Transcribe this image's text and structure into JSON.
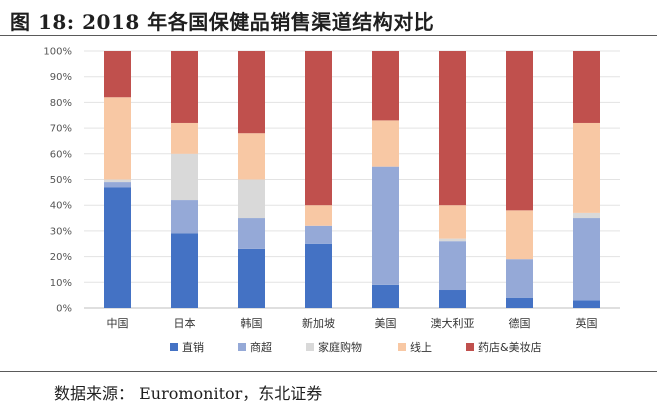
{
  "title": "图 18: 2018 年各国保健品销售渠道结构对比",
  "source": "数据来源： Euromonitor，东北证券",
  "chart_data": {
    "type": "bar",
    "stacked": true,
    "categories": [
      "中国",
      "日本",
      "韩国",
      "新加坡",
      "美国",
      "澳大利亚",
      "德国",
      "英国"
    ],
    "series": [
      {
        "name": "直销",
        "color": "#4472c4",
        "values": [
          47,
          29,
          23,
          25,
          9,
          7,
          4,
          3
        ]
      },
      {
        "name": "商超",
        "color": "#95a9d7",
        "values": [
          2,
          13,
          12,
          7,
          46,
          19,
          15,
          32
        ]
      },
      {
        "name": "家庭购物",
        "color": "#d9d9d9",
        "values": [
          1,
          18,
          15,
          0,
          0,
          1,
          0,
          2
        ]
      },
      {
        "name": "线上",
        "color": "#f8c8a4",
        "values": [
          32,
          12,
          18,
          8,
          18,
          13,
          19,
          35
        ]
      },
      {
        "name": "药店&美妆店",
        "color": "#c0504d",
        "values": [
          18,
          28,
          32,
          60,
          27,
          60,
          62,
          28
        ]
      }
    ],
    "yticks": [
      "0%",
      "10%",
      "20%",
      "30%",
      "40%",
      "50%",
      "60%",
      "70%",
      "80%",
      "90%",
      "100%"
    ],
    "ylim": [
      0,
      100
    ],
    "legend_position": "bottom"
  }
}
